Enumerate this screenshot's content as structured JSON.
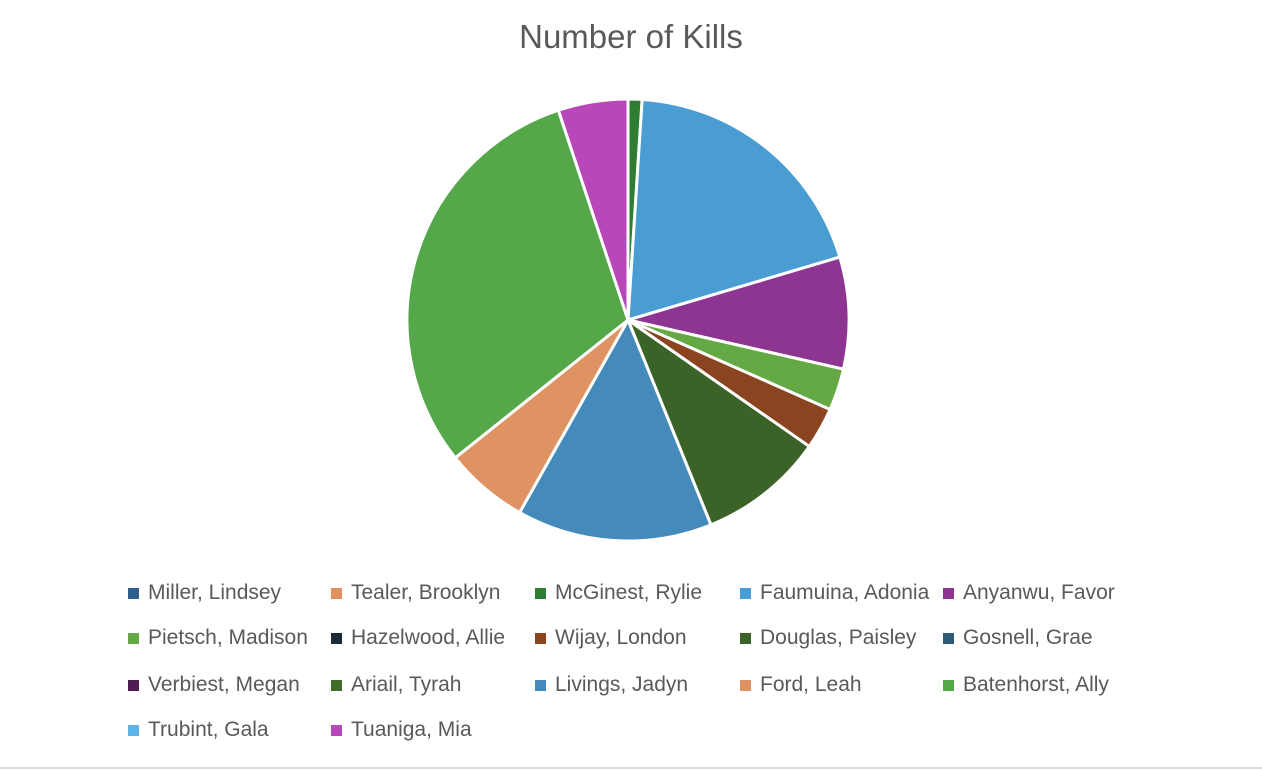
{
  "chart_data": {
    "type": "pie",
    "title": "Number of Kills",
    "legend_position": "bottom",
    "series": [
      {
        "name": "Miller, Lindsey",
        "value": 0,
        "color": "#2f5f8a"
      },
      {
        "name": "Tealer, Brooklyn",
        "value": 0,
        "color": "#e0915f"
      },
      {
        "name": "McGinest, Rylie",
        "value": 1,
        "color": "#2e7d32"
      },
      {
        "name": "Faumuina, Adonia",
        "value": 19,
        "color": "#4a9dd3"
      },
      {
        "name": "Anyanwu, Favor",
        "value": 8,
        "color": "#8e3591"
      },
      {
        "name": "Pietsch, Madison",
        "value": 3,
        "color": "#64a944"
      },
      {
        "name": "Hazelwood, Allie",
        "value": 0,
        "color": "#1b2b3a"
      },
      {
        "name": "Wijay, London",
        "value": 3,
        "color": "#8a4420"
      },
      {
        "name": "Douglas, Paisley",
        "value": 9,
        "color": "#3c6327"
      },
      {
        "name": "Gosnell, Grae",
        "value": 0,
        "color": "#2b5b78"
      },
      {
        "name": "Verbiest, Megan",
        "value": 0,
        "color": "#4f1d4f"
      },
      {
        "name": "Ariail, Tyrah",
        "value": 0,
        "color": "#3f6e2a"
      },
      {
        "name": "Livings, Jadyn",
        "value": 14,
        "color": "#448abb"
      },
      {
        "name": "Ford, Leah",
        "value": 6,
        "color": "#df9262"
      },
      {
        "name": "Batenhorst, Ally",
        "value": 30,
        "color": "#55a84a"
      },
      {
        "name": "Trubint, Gala",
        "value": 0,
        "color": "#5bb3e6"
      },
      {
        "name": "Tuaniga, Mia",
        "value": 5,
        "color": "#b947b9"
      }
    ]
  }
}
